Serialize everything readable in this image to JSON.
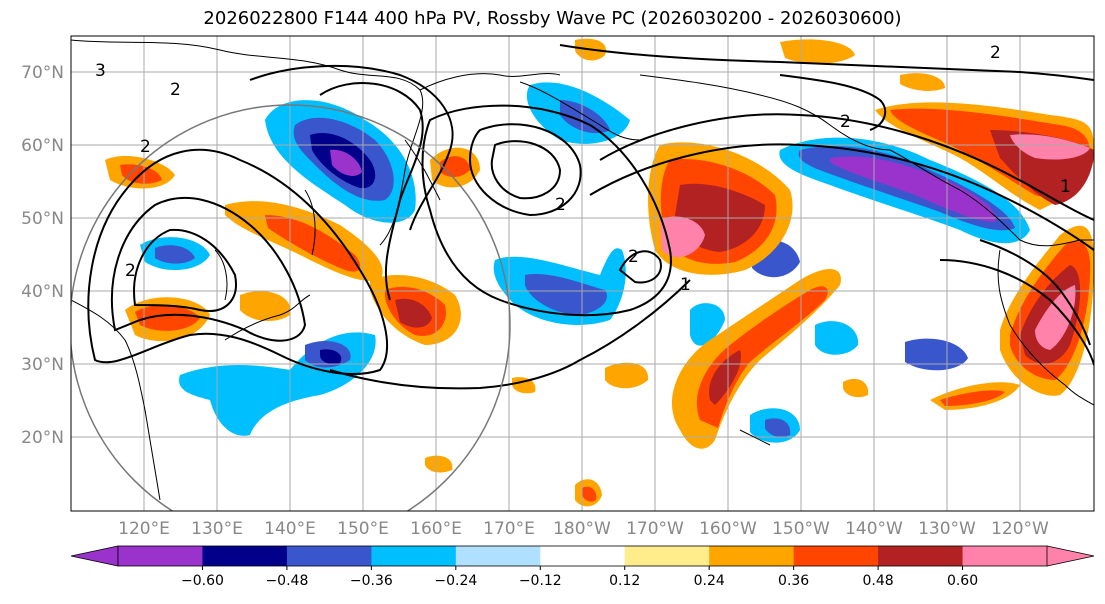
{
  "title": "2026022800 F144 400 hPa PV, Rossby Wave PC (2026030200 - 2026030600)",
  "lat_labels": [
    "70°N",
    "60°N",
    "50°N",
    "40°N",
    "30°N",
    "20°N"
  ],
  "lon_labels": [
    "120°E",
    "130°E",
    "140°E",
    "150°E",
    "160°E",
    "170°E",
    "180°W",
    "170°W",
    "160°W",
    "150°W",
    "140°W",
    "130°W",
    "120°W"
  ],
  "colorbar": {
    "colors": [
      "#9933cc",
      "#00008b",
      "#3a56cc",
      "#00bfff",
      "#b0e0ff",
      "#ffffff",
      "#ffec8b",
      "#ffa500",
      "#ff4500",
      "#b22222",
      "#ff82ab"
    ],
    "low_extend": "#9933cc",
    "high_extend": "#ff82ab",
    "tick_labels": [
      "−0.60",
      "−0.48",
      "−0.36",
      "−0.24",
      "−0.12",
      "0.12",
      "0.24",
      "0.36",
      "0.48",
      "0.60"
    ]
  },
  "contour_labels": [
    "3",
    "2",
    "2",
    "2",
    "2",
    "2",
    "2",
    "1",
    "2",
    "1"
  ],
  "colors": {
    "gridline": "#aaaaaa",
    "coastline": "#000000",
    "contour": "#000000",
    "circle": "#777777"
  }
}
